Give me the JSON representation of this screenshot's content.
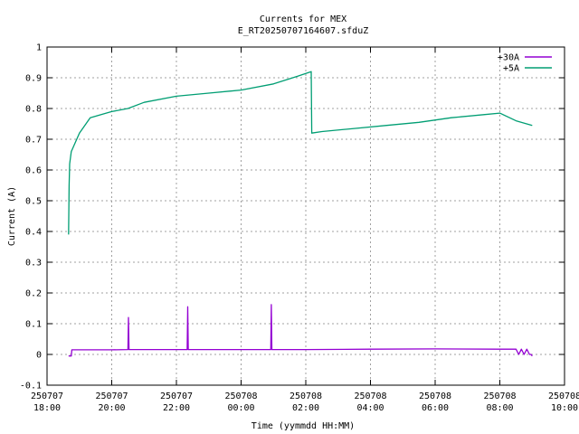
{
  "chart_data": {
    "type": "line",
    "title": "Currents for MEX",
    "subtitle": "E_RT20250707164607.sfduZ",
    "xlabel": "Time (yymmdd HH:MM)",
    "ylabel": "Current (A)",
    "ylim": [
      -0.1,
      1.0
    ],
    "yticks": [
      -0.1,
      0,
      0.1,
      0.2,
      0.3,
      0.4,
      0.5,
      0.6,
      0.7,
      0.8,
      0.9,
      1
    ],
    "ytick_labels": [
      "-0.1",
      "0",
      "0.1",
      "0.2",
      "0.3",
      "0.4",
      "0.5",
      "0.6",
      "0.7",
      "0.8",
      "0.9",
      "1"
    ],
    "xlim": [
      "2025-07-07 18:00",
      "2025-07-08 10:00"
    ],
    "xticks": [
      {
        "x": "2025-07-07 18:00",
        "date": "250707",
        "time": "18:00"
      },
      {
        "x": "2025-07-07 20:00",
        "date": "250707",
        "time": "20:00"
      },
      {
        "x": "2025-07-07 22:00",
        "date": "250707",
        "time": "22:00"
      },
      {
        "x": "2025-07-08 00:00",
        "date": "250708",
        "time": "00:00"
      },
      {
        "x": "2025-07-08 02:00",
        "date": "250708",
        "time": "02:00"
      },
      {
        "x": "2025-07-08 04:00",
        "date": "250708",
        "time": "04:00"
      },
      {
        "x": "2025-07-08 06:00",
        "date": "250708",
        "time": "06:00"
      },
      {
        "x": "2025-07-08 08:00",
        "date": "250708",
        "time": "08:00"
      },
      {
        "x": "2025-07-08 10:00",
        "date": "250708",
        "time": "10:00"
      }
    ],
    "grid": true,
    "legend": "top-right",
    "series": [
      {
        "name": "+30A",
        "color": "#9400d3",
        "x": [
          "2025-07-07 18:40",
          "2025-07-07 18:45",
          "2025-07-07 18:46",
          "2025-07-07 20:00",
          "2025-07-07 20:30",
          "2025-07-07 20:31",
          "2025-07-07 20:32",
          "2025-07-07 22:00",
          "2025-07-07 22:20",
          "2025-07-07 22:21",
          "2025-07-07 22:22",
          "2025-07-08 00:00",
          "2025-07-08 00:55",
          "2025-07-08 00:56",
          "2025-07-08 00:57",
          "2025-07-08 02:00",
          "2025-07-08 04:00",
          "2025-07-08 06:00",
          "2025-07-08 08:00",
          "2025-07-08 08:30",
          "2025-07-08 08:35",
          "2025-07-08 08:40",
          "2025-07-08 08:45",
          "2025-07-08 08:50",
          "2025-07-08 08:55",
          "2025-07-08 08:58",
          "2025-07-08 09:00"
        ],
        "values": [
          -0.005,
          -0.005,
          0.015,
          0.015,
          0.016,
          0.12,
          0.016,
          0.016,
          0.016,
          0.155,
          0.016,
          0.016,
          0.016,
          0.162,
          0.016,
          0.016,
          0.017,
          0.018,
          0.017,
          0.017,
          0.0,
          0.017,
          0.0,
          0.017,
          0.0,
          0.0,
          -0.005
        ]
      },
      {
        "name": "+5A",
        "color": "#009e73",
        "x": [
          "2025-07-07 18:40",
          "2025-07-07 18:41",
          "2025-07-07 18:42",
          "2025-07-07 18:45",
          "2025-07-07 19:00",
          "2025-07-07 19:20",
          "2025-07-07 20:00",
          "2025-07-07 20:30",
          "2025-07-07 21:00",
          "2025-07-07 22:00",
          "2025-07-07 23:00",
          "2025-07-08 00:00",
          "2025-07-08 01:00",
          "2025-07-08 01:45",
          "2025-07-08 02:10",
          "2025-07-08 02:11",
          "2025-07-08 02:30",
          "2025-07-08 03:30",
          "2025-07-08 04:30",
          "2025-07-08 05:30",
          "2025-07-08 06:30",
          "2025-07-08 07:30",
          "2025-07-08 08:00",
          "2025-07-08 08:30",
          "2025-07-08 09:00"
        ],
        "values": [
          0.39,
          0.55,
          0.62,
          0.66,
          0.72,
          0.77,
          0.79,
          0.8,
          0.82,
          0.84,
          0.85,
          0.86,
          0.88,
          0.905,
          0.92,
          0.72,
          0.725,
          0.735,
          0.745,
          0.755,
          0.77,
          0.78,
          0.785,
          0.76,
          0.745
        ]
      }
    ]
  }
}
